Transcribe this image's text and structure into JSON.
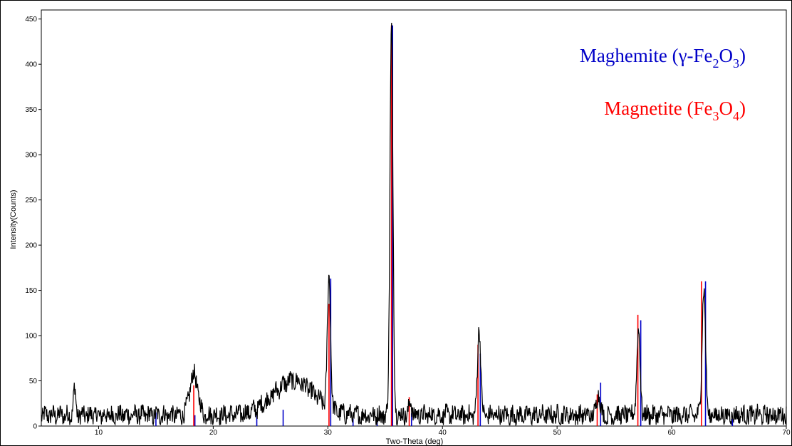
{
  "chart_data": {
    "type": "line",
    "title": "",
    "xlabel": "Two-Theta (deg)",
    "ylabel": "Intensity(Counts)",
    "xlim": [
      5,
      70
    ],
    "ylim": [
      0,
      460
    ],
    "x_ticks": [
      10,
      20,
      30,
      40,
      50,
      60,
      70
    ],
    "y_ticks": [
      0,
      50,
      100,
      150,
      200,
      250,
      300,
      350,
      400,
      450
    ],
    "legend_placement": "top-right",
    "legend": [
      {
        "name": "maghemite",
        "text": "Maghemite (γ-Fe",
        "sub1": "2",
        "mid": "O",
        "sub2": "3",
        "tail": ")",
        "color": "#0000c8"
      },
      {
        "name": "magnetite",
        "text": "Magnetite (Fe",
        "sub1": "3",
        "mid": "O",
        "sub2": "4",
        "tail": ")",
        "color": "#ff0000"
      }
    ],
    "series": [
      {
        "kind": "pattern",
        "color": "#000000",
        "baseline": 12,
        "noise": 10,
        "peaks": [
          {
            "x": 7.9,
            "height": 30,
            "width": 0.1
          },
          {
            "x": 18.3,
            "height": 45,
            "width": 0.35
          },
          {
            "x": 27.0,
            "height": 38,
            "width": 1.8
          },
          {
            "x": 30.1,
            "height": 145,
            "width": 0.14
          },
          {
            "x": 35.55,
            "height": 432,
            "width": 0.13
          },
          {
            "x": 37.2,
            "height": 15,
            "width": 0.12
          },
          {
            "x": 43.2,
            "height": 97,
            "width": 0.14
          },
          {
            "x": 53.6,
            "height": 25,
            "width": 0.15
          },
          {
            "x": 57.1,
            "height": 92,
            "width": 0.15
          },
          {
            "x": 62.8,
            "height": 140,
            "width": 0.15
          }
        ]
      },
      {
        "name": "Maghemite",
        "kind": "reference",
        "color": "#0000c8",
        "x": [
          15.0,
          18.4,
          23.8,
          26.1,
          30.25,
          32.2,
          34.3,
          35.65,
          37.3,
          43.3,
          53.8,
          57.3,
          62.95,
          65.3
        ],
        "y": [
          15,
          12,
          14,
          18,
          163,
          8,
          10,
          443,
          14,
          80,
          48,
          117,
          160,
          8
        ]
      },
      {
        "name": "Magnetite",
        "kind": "reference",
        "color": "#ff0000",
        "x": [
          18.3,
          30.1,
          35.55,
          37.1,
          43.1,
          53.5,
          57.05,
          62.6
        ],
        "y": [
          45,
          135,
          443,
          32,
          90,
          35,
          123,
          160
        ]
      }
    ]
  }
}
